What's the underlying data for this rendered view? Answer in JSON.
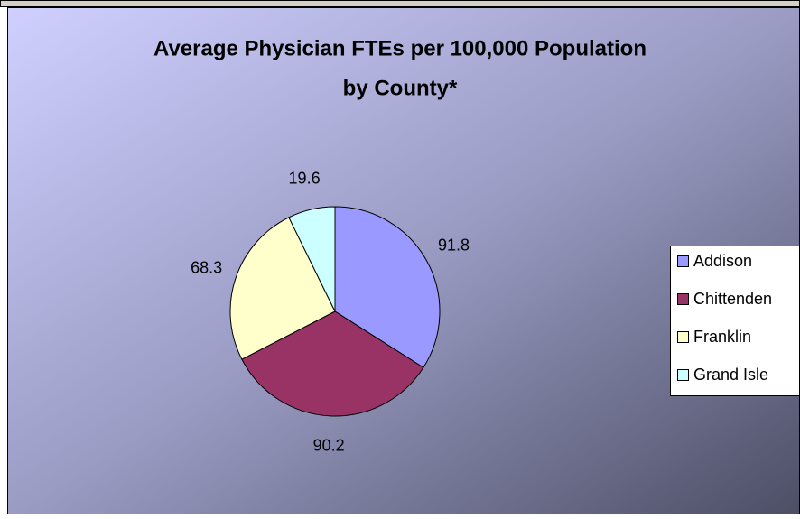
{
  "chart_data": {
    "type": "pie",
    "title": [
      "Average Physician FTEs per 100,000 Population",
      "by County*"
    ],
    "categories": [
      "Addison",
      "Chittenden",
      "Franklin",
      "Grand Isle"
    ],
    "values": [
      91.8,
      90.2,
      68.3,
      19.6
    ],
    "colors": [
      "#9999ff",
      "#993366",
      "#ffffcc",
      "#ccffff"
    ],
    "legend": "right"
  }
}
